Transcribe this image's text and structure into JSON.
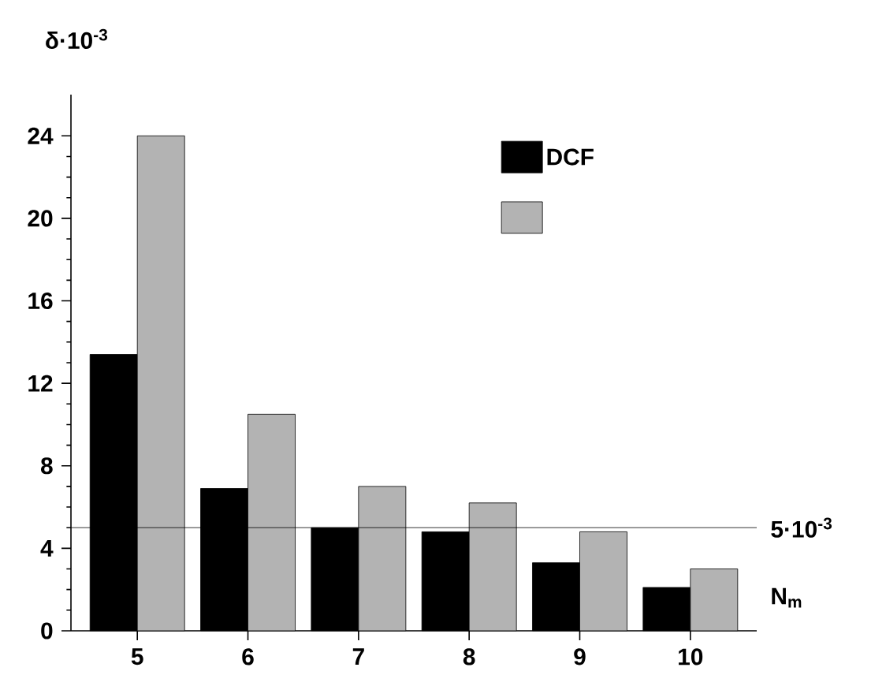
{
  "chart_data": {
    "type": "bar",
    "ylabel": "δ·10$^{-3}$",
    "xlabel": "N$_{m}$",
    "categories": [
      "5",
      "6",
      "7",
      "8",
      "9",
      "10"
    ],
    "series": [
      {
        "name": "DCF",
        "color": "#000000",
        "values": [
          13.4,
          6.9,
          5.0,
          4.8,
          3.3,
          2.1
        ]
      },
      {
        "color": "#b3b3b3",
        "values": [
          24.0,
          10.5,
          7.0,
          6.2,
          4.8,
          3.0
        ]
      }
    ],
    "ylim": [
      0,
      26
    ],
    "yticks": [
      0,
      4,
      8,
      12,
      16,
      20,
      24
    ],
    "ref_lines": [
      {
        "axis": "y",
        "value": 5,
        "label": "5·10$^{-3}$"
      }
    ],
    "legend": "top right",
    "grid": false
  }
}
